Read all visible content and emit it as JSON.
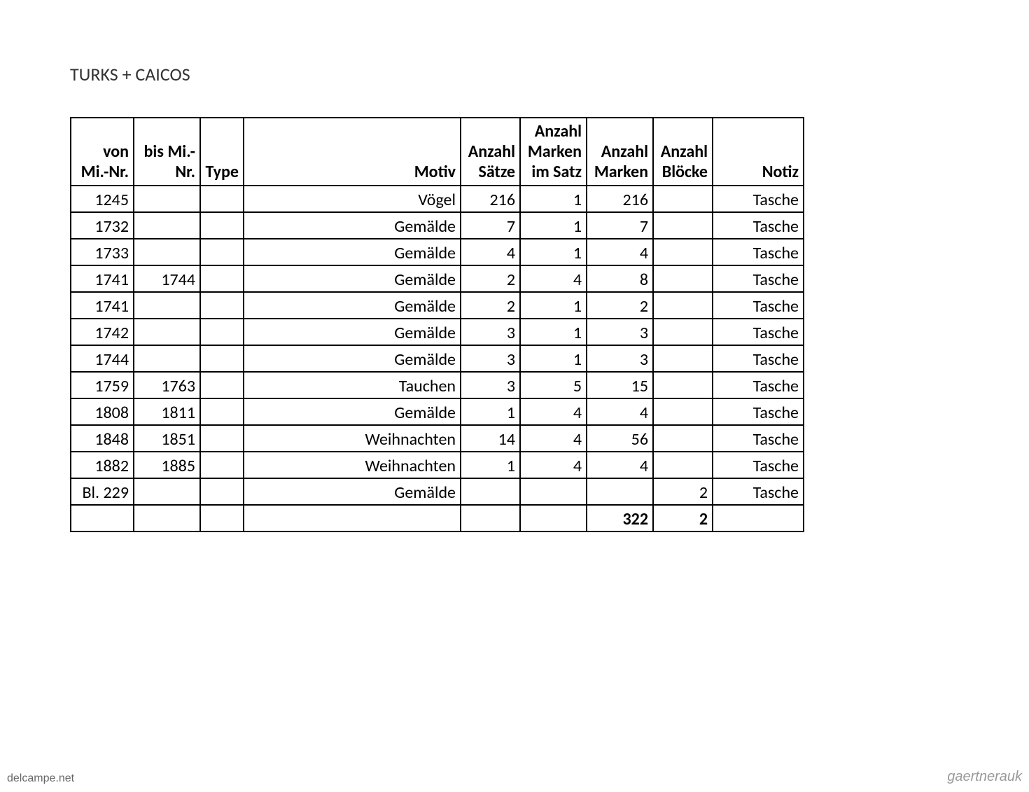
{
  "title": "TURKS + CAICOS",
  "table": {
    "headers": {
      "von": "von Mi.-Nr.",
      "bis": "bis Mi.-Nr.",
      "type": "Type",
      "motiv": "Motiv",
      "saetze": "Anzahl Sätze",
      "marken_satz": "Anzahl Marken im Satz",
      "marken": "Anzahl Marken",
      "bloecke": "Anzahl Blöcke",
      "notiz": "Notiz"
    },
    "rows": [
      {
        "von": "1245",
        "bis": "",
        "type": "",
        "motiv": "Vögel",
        "saetze": "216",
        "marken_satz": "1",
        "marken": "216",
        "bloecke": "",
        "notiz": "Tasche"
      },
      {
        "von": "1732",
        "bis": "",
        "type": "",
        "motiv": "Gemälde",
        "saetze": "7",
        "marken_satz": "1",
        "marken": "7",
        "bloecke": "",
        "notiz": "Tasche"
      },
      {
        "von": "1733",
        "bis": "",
        "type": "",
        "motiv": "Gemälde",
        "saetze": "4",
        "marken_satz": "1",
        "marken": "4",
        "bloecke": "",
        "notiz": "Tasche"
      },
      {
        "von": "1741",
        "bis": "1744",
        "type": "",
        "motiv": "Gemälde",
        "saetze": "2",
        "marken_satz": "4",
        "marken": "8",
        "bloecke": "",
        "notiz": "Tasche"
      },
      {
        "von": "1741",
        "bis": "",
        "type": "",
        "motiv": "Gemälde",
        "saetze": "2",
        "marken_satz": "1",
        "marken": "2",
        "bloecke": "",
        "notiz": "Tasche"
      },
      {
        "von": "1742",
        "bis": "",
        "type": "",
        "motiv": "Gemälde",
        "saetze": "3",
        "marken_satz": "1",
        "marken": "3",
        "bloecke": "",
        "notiz": "Tasche"
      },
      {
        "von": "1744",
        "bis": "",
        "type": "",
        "motiv": "Gemälde",
        "saetze": "3",
        "marken_satz": "1",
        "marken": "3",
        "bloecke": "",
        "notiz": "Tasche"
      },
      {
        "von": "1759",
        "bis": "1763",
        "type": "",
        "motiv": "Tauchen",
        "saetze": "3",
        "marken_satz": "5",
        "marken": "15",
        "bloecke": "",
        "notiz": "Tasche"
      },
      {
        "von": "1808",
        "bis": "1811",
        "type": "",
        "motiv": "Gemälde",
        "saetze": "1",
        "marken_satz": "4",
        "marken": "4",
        "bloecke": "",
        "notiz": "Tasche"
      },
      {
        "von": "1848",
        "bis": "1851",
        "type": "",
        "motiv": "Weihnachten",
        "saetze": "14",
        "marken_satz": "4",
        "marken": "56",
        "bloecke": "",
        "notiz": "Tasche"
      },
      {
        "von": "1882",
        "bis": "1885",
        "type": "",
        "motiv": "Weihnachten",
        "saetze": "1",
        "marken_satz": "4",
        "marken": "4",
        "bloecke": "",
        "notiz": "Tasche"
      },
      {
        "von": "Bl. 229",
        "bis": "",
        "type": "",
        "motiv": "Gemälde",
        "saetze": "",
        "marken_satz": "",
        "marken": "",
        "bloecke": "2",
        "notiz": "Tasche"
      }
    ],
    "totals": {
      "marken": "322",
      "bloecke": "2"
    }
  },
  "watermarks": {
    "left": "delcampe.net",
    "right": "gaertnerauk"
  },
  "colors": {
    "text": "#000000",
    "background": "#ffffff",
    "border": "#000000"
  }
}
